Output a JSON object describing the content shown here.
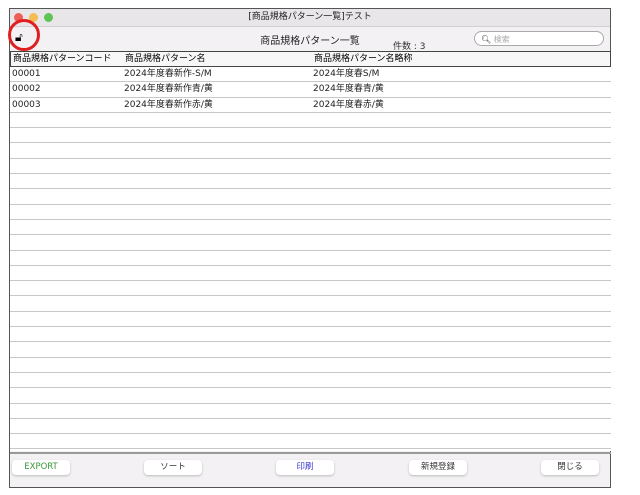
{
  "window": {
    "title": "[商品規格パターン一覧]テスト"
  },
  "toolbar": {
    "title": "商品規格パターン一覧",
    "count_label": "件数 : 3",
    "search_placeholder": "検索"
  },
  "table": {
    "headers": [
      "商品規格パターンコード",
      "商品規格パターン名",
      "商品規格パターン名略称"
    ],
    "rows": [
      [
        "00001",
        "2024年度春新作-S/M",
        "2024年度春S/M"
      ],
      [
        "00002",
        "2024年度春新作青/黄",
        "2024年度春青/黄"
      ],
      [
        "00003",
        "2024年度春新作赤/黄",
        "2024年度春赤/黄"
      ]
    ]
  },
  "footer": {
    "export": "EXPORT",
    "sort": "ソート",
    "print": "印刷",
    "new": "新規登録",
    "close": "閉じる"
  },
  "colors": {
    "export_text": "#3a9a3a",
    "print_text": "#3b3bd0",
    "annotation_ring": "#e02020"
  }
}
